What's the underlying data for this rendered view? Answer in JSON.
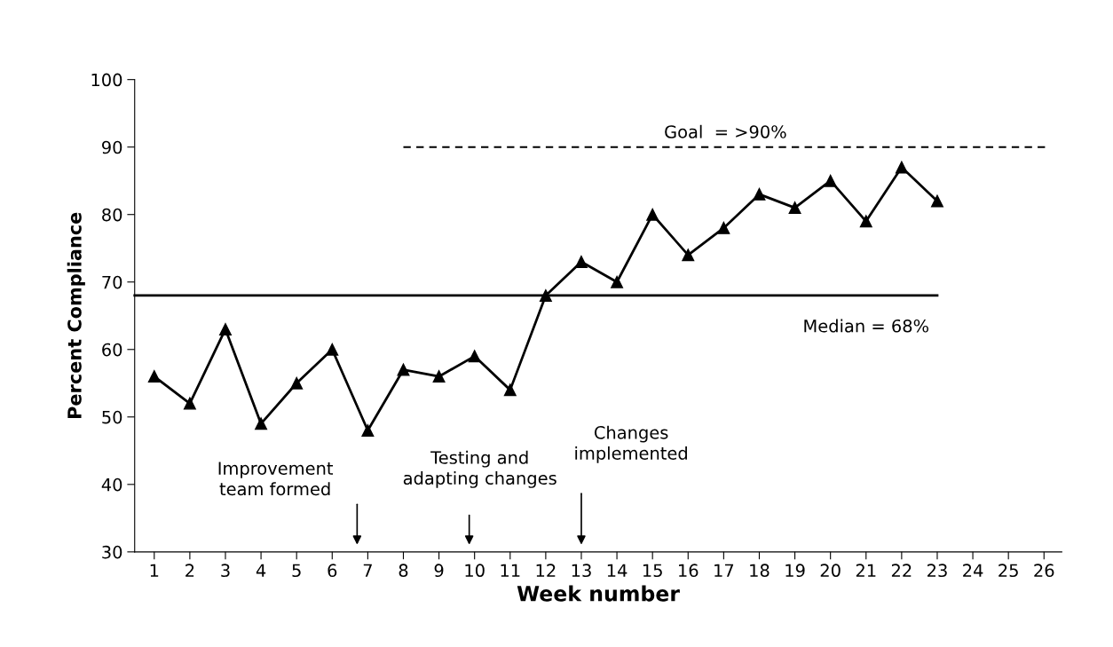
{
  "chart_data": {
    "type": "line",
    "xlabel": "Week number",
    "ylabel": "Percent Compliance",
    "xlim": [
      0.45,
      26.5
    ],
    "xticks": [
      1,
      2,
      3,
      4,
      5,
      6,
      7,
      8,
      9,
      10,
      11,
      12,
      13,
      14,
      15,
      16,
      17,
      18,
      19,
      20,
      21,
      22,
      23,
      24,
      25,
      26
    ],
    "ylim": [
      30,
      100
    ],
    "yticks": [
      30,
      40,
      50,
      60,
      70,
      80,
      90,
      100
    ],
    "grid": false,
    "legend": false,
    "series": [
      {
        "x": [
          1,
          2,
          3,
          4,
          5,
          6,
          7,
          8,
          9,
          10,
          11,
          12,
          13,
          14,
          15,
          16,
          17,
          18,
          19,
          20,
          21,
          22,
          23
        ],
        "values": [
          56,
          52,
          63,
          49,
          55,
          60,
          48,
          57,
          56,
          59,
          54,
          68,
          73,
          70,
          80,
          74,
          78,
          83,
          81,
          85,
          79,
          87,
          82
        ],
        "color": "#000000",
        "marker": "triangle",
        "line_style": "solid"
      },
      {
        "name": "Median = 68%",
        "x": [
          0.45,
          23
        ],
        "values": [
          68,
          68
        ],
        "color": "#000000",
        "marker": "none",
        "line_style": "solid"
      },
      {
        "name": "Goal  = >90%",
        "x": [
          8,
          26.1
        ],
        "values": [
          90,
          90
        ],
        "color": "#000000",
        "marker": "none",
        "line_style": "dashed"
      }
    ],
    "annotations": [
      "Improvement\nteam formed",
      "Testing and\nadapting changes",
      "Changes\nimplemented"
    ]
  }
}
